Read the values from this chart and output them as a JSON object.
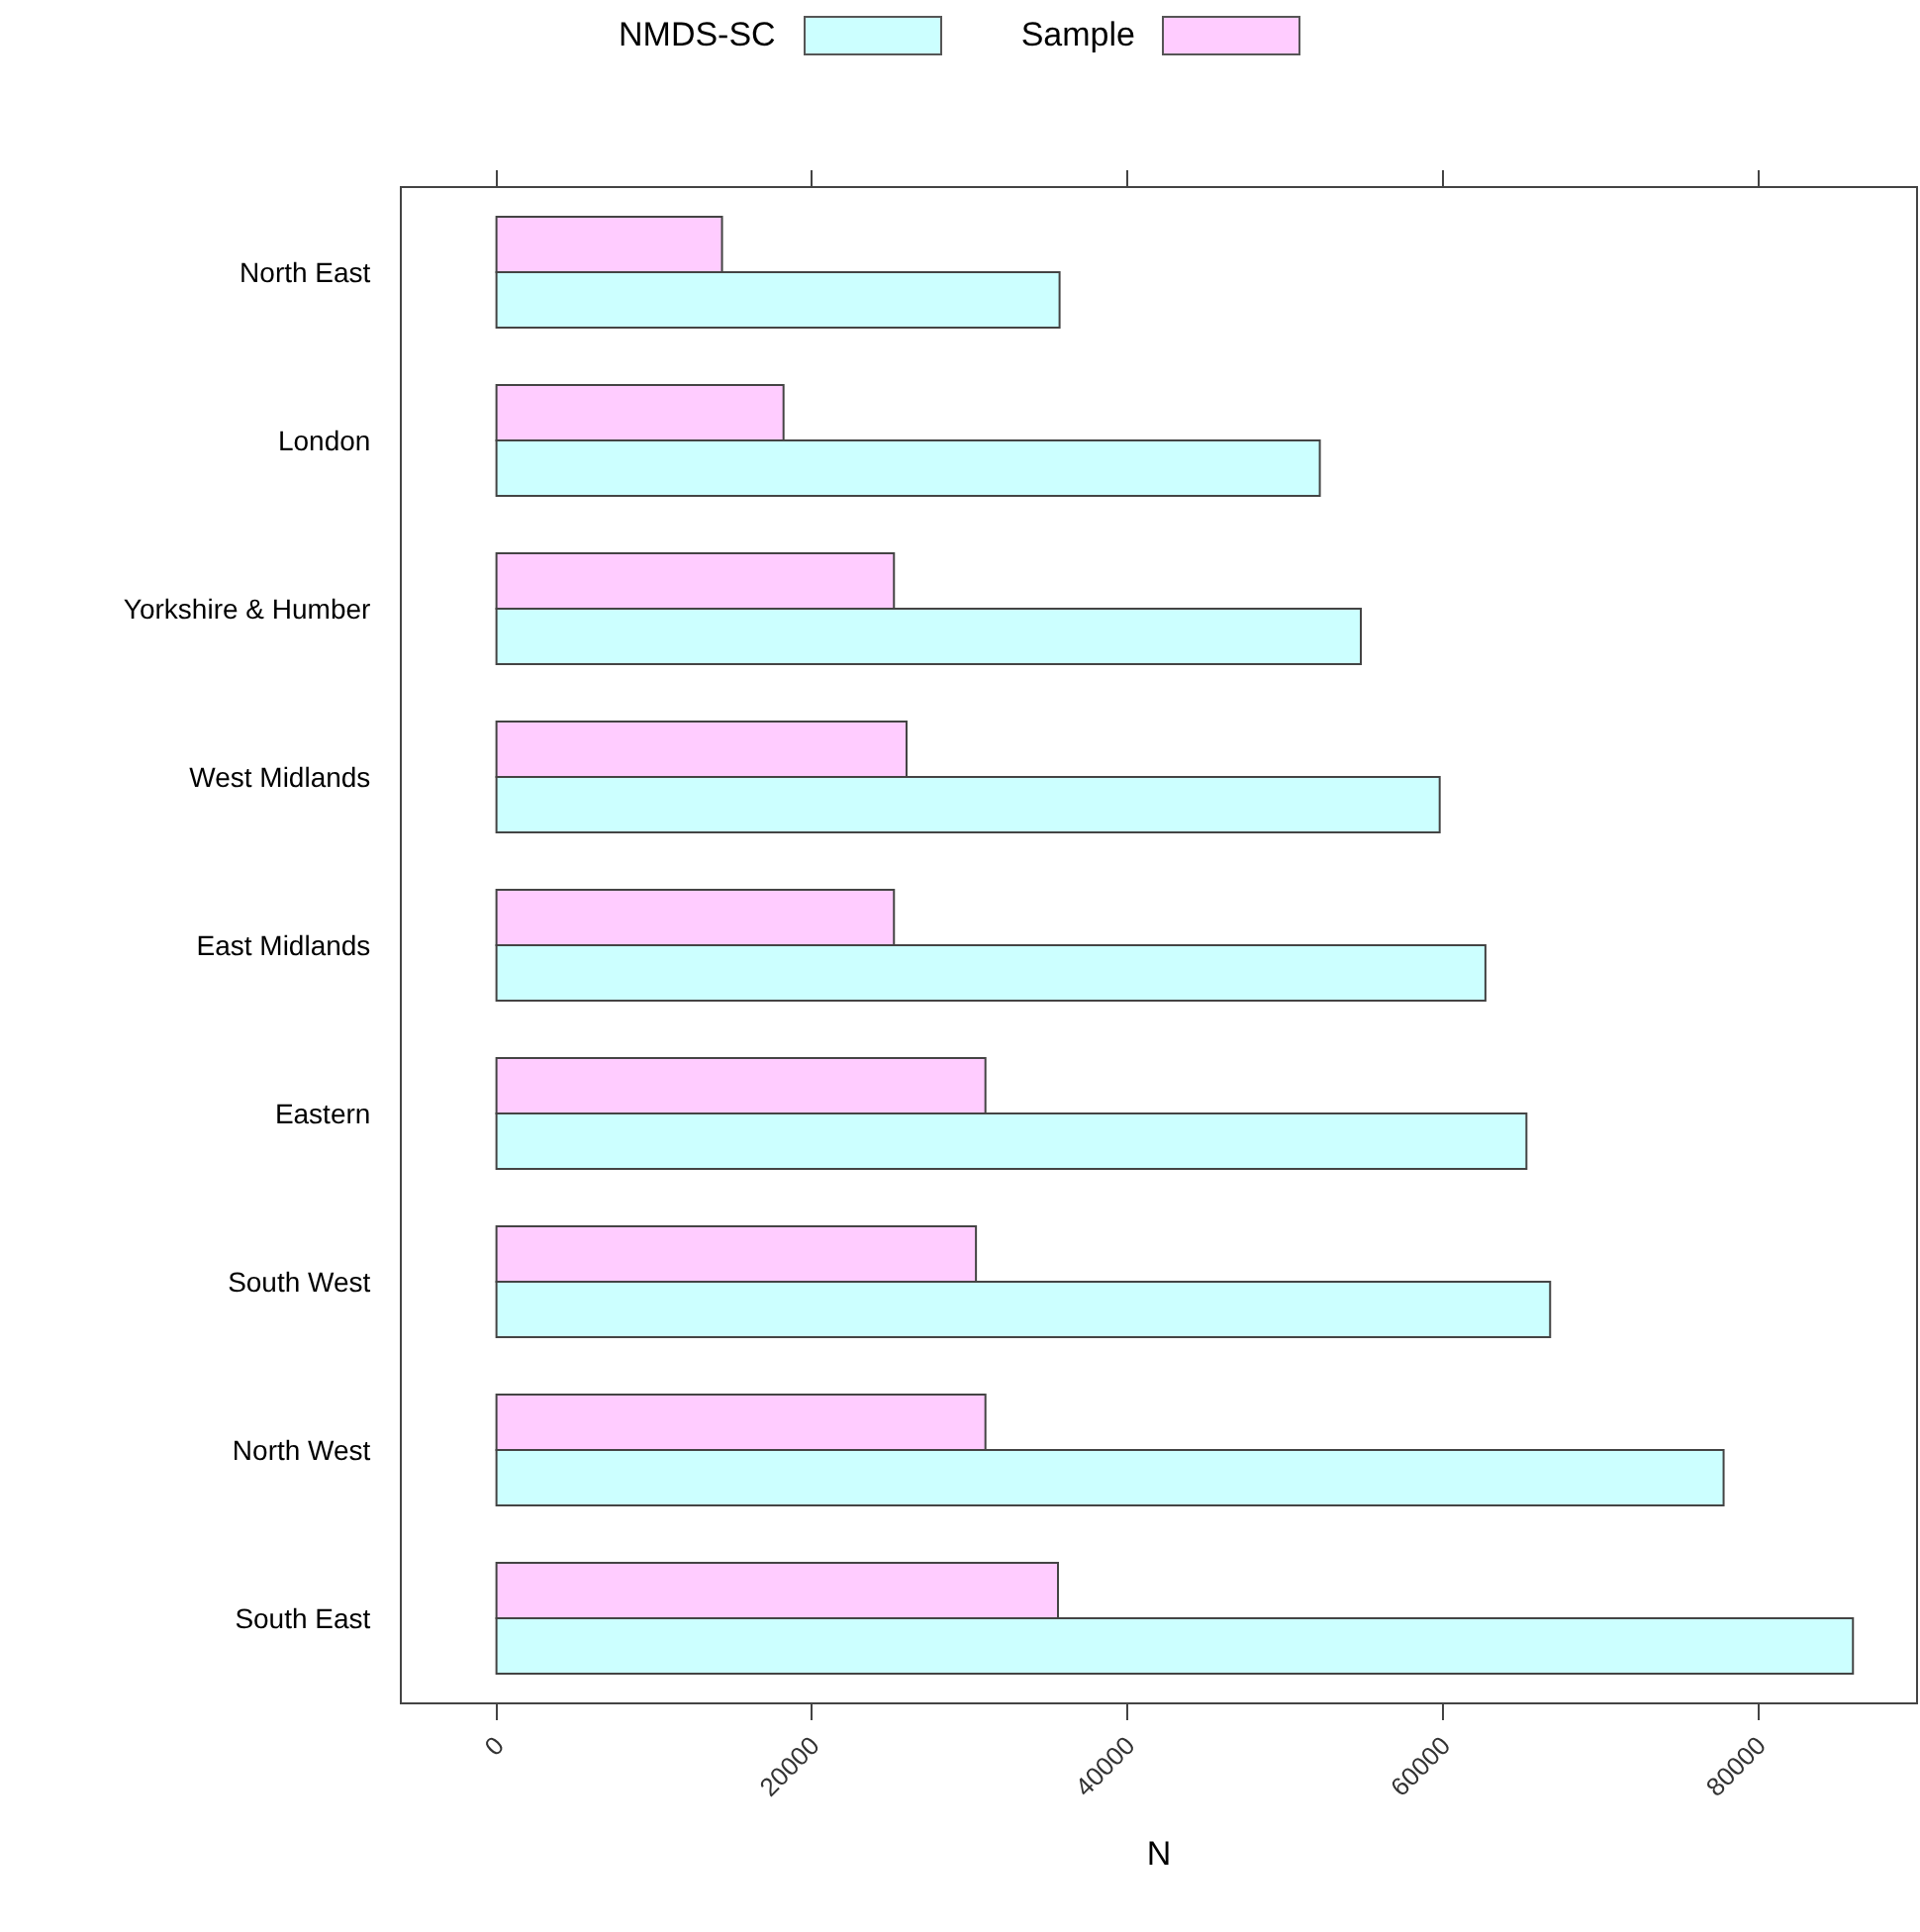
{
  "chart_data": {
    "type": "bar",
    "orientation": "horizontal",
    "xlabel": "N",
    "categories": [
      "North East",
      "London",
      "Yorkshire & Humber",
      "West Midlands",
      "East Midlands",
      "Eastern",
      "South West",
      "North West",
      "South East"
    ],
    "series": [
      {
        "name": "NMDS-SC",
        "color": "#ccffff",
        "values": [
          35700,
          52200,
          54800,
          59800,
          62700,
          65300,
          66800,
          77800,
          86000
        ]
      },
      {
        "name": "Sample",
        "color": "#ffccff",
        "values": [
          14300,
          18200,
          25200,
          26000,
          25200,
          31000,
          30400,
          31000,
          35600
        ]
      }
    ],
    "xlim": [
      -6000,
      90000
    ],
    "xticks": [
      0,
      20000,
      40000,
      60000,
      80000
    ],
    "grid": false,
    "legend": "top"
  }
}
